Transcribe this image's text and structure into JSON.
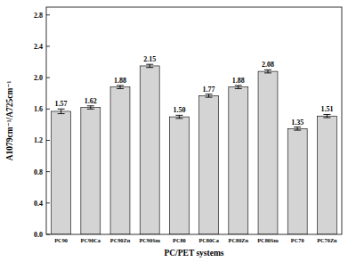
{
  "chart_data": {
    "type": "bar",
    "x_label": "PC/PET systems",
    "y_label": "A1079cm⁻¹/A725cm⁻¹",
    "categories": [
      "PC90",
      "PC90Ca",
      "PC90Zn",
      "PC90Sm",
      "PC80",
      "PC80Ca",
      "PC80Zn",
      "PC80Sm",
      "PC70",
      "PC70Zn"
    ],
    "values": [
      1.57,
      1.62,
      1.88,
      2.15,
      1.5,
      1.77,
      1.88,
      2.08,
      1.35,
      1.51
    ],
    "value_labels": [
      "1.57",
      "1.62",
      "1.88",
      "2.15",
      "1.50",
      "1.77",
      "1.88",
      "2.08",
      "1.35",
      "1.51"
    ],
    "errors": [
      0.03,
      0.02,
      0.02,
      0.02,
      0.02,
      0.02,
      0.02,
      0.02,
      0.02,
      0.02
    ],
    "color": "#d4d4d4",
    "ylim": [
      0,
      2.9
    ],
    "yticks": [
      {
        "value": 0,
        "label": "0.0"
      },
      {
        "value": 0.4,
        "label": "0.4"
      },
      {
        "value": 0.8,
        "label": "0.8"
      },
      {
        "value": 1.2,
        "label": "1.2"
      },
      {
        "value": 1.6,
        "label": "1.6"
      },
      {
        "value": 2.0,
        "label": "2.0"
      },
      {
        "value": 2.4,
        "label": "2.4"
      },
      {
        "value": 2.8,
        "label": "2.8"
      }
    ],
    "grid": false,
    "data_labels": true
  }
}
